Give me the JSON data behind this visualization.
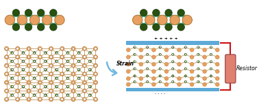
{
  "bg_color": "#ffffff",
  "orange_atom_color": "#E8A060",
  "green_atom_color": "#4A7A20",
  "dark_green_color": "#2A5010",
  "bond_color": "#C8A878",
  "blue_plate_color": "#5BAAD8",
  "resistor_color": "#E08070",
  "red_wire_color": "#CC1010",
  "strain_arrow_color": "#70B8E0",
  "strain_text": "Strain",
  "resistor_text": "Resistor",
  "teal_blob": "#40C0A0",
  "green_blob": "#80C840",
  "yellow_blob": "#C8D840"
}
